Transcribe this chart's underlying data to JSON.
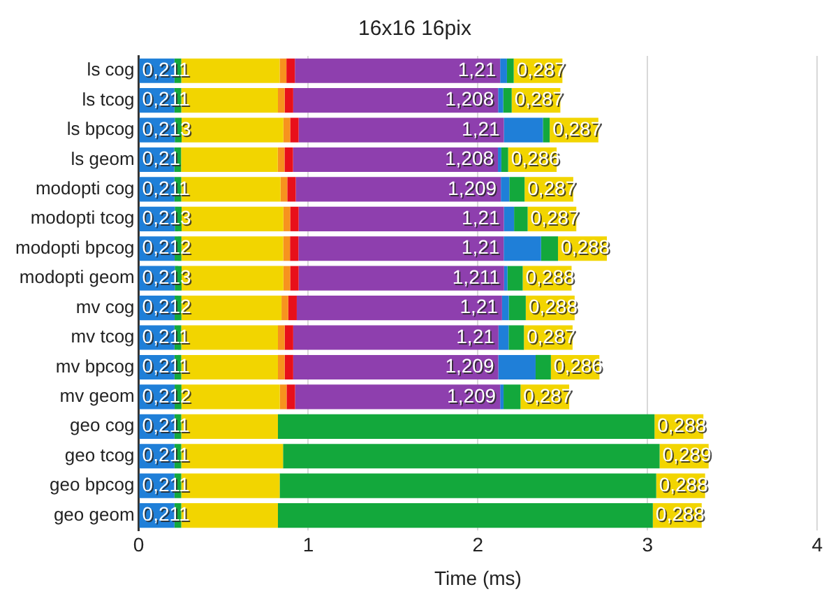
{
  "chart_data": {
    "type": "bar",
    "orientation": "horizontal",
    "stacked": true,
    "title": "16x16 16pix",
    "xlabel": "Time (ms)",
    "categories": [
      "ls cog",
      "ls tcog",
      "ls bpcog",
      "ls geom",
      "modopti cog",
      "modopti tcog",
      "modopti bpcog",
      "modopti geom",
      "mv cog",
      "mv tcog",
      "mv bpcog",
      "mv geom",
      "geo cog",
      "geo tcog",
      "geo bpcog",
      "geo geom"
    ],
    "xlim": [
      0,
      4
    ],
    "xticks": [
      0,
      1,
      2,
      3,
      4
    ],
    "grid": "x",
    "legend": false,
    "series": [
      {
        "color": "#1f7fd8",
        "values": [
          0.211,
          0.211,
          0.213,
          0.21,
          0.211,
          0.213,
          0.212,
          0.213,
          0.212,
          0.211,
          0.211,
          0.212,
          0.211,
          0.211,
          0.211,
          0.211
        ],
        "value_labels": [
          "0,211",
          "0,211",
          "0,213",
          "0,21",
          "0,211",
          "0,213",
          "0,212",
          "0,213",
          "0,212",
          "0,211",
          "0,211",
          "0,212",
          "0,211",
          "0,211",
          "0,211",
          "0,211"
        ]
      },
      {
        "color": "#13a83c",
        "values": [
          0.04,
          0.04,
          0.04,
          0.04,
          0.04,
          0.04,
          0.04,
          0.04,
          0.04,
          0.04,
          0.04,
          0.04,
          0.04,
          0.04,
          0.04,
          0.04
        ]
      },
      {
        "color": "#f2d500",
        "values": [
          0.58,
          0.57,
          0.6,
          0.57,
          0.585,
          0.6,
          0.6,
          0.6,
          0.59,
          0.57,
          0.57,
          0.58,
          0.57,
          0.6,
          0.58,
          0.57
        ]
      },
      {
        "color": "#f7931e",
        "values": [
          0.04,
          0.04,
          0.04,
          0.04,
          0.04,
          0.04,
          0.04,
          0.04,
          0.04,
          0.04,
          0.04,
          0.04,
          null,
          null,
          null,
          null
        ]
      },
      {
        "color": "#e8101a",
        "values": [
          0.05,
          0.05,
          0.05,
          0.05,
          0.05,
          0.05,
          0.05,
          0.05,
          0.05,
          0.05,
          0.05,
          0.05,
          null,
          null,
          null,
          null
        ]
      },
      {
        "color": "#8e3fae",
        "values": [
          1.21,
          1.208,
          1.21,
          1.208,
          1.209,
          1.21,
          1.21,
          1.211,
          1.21,
          1.21,
          1.209,
          1.209,
          null,
          null,
          null,
          null
        ],
        "value_labels": [
          "1,21",
          "1,208",
          "1,21",
          "1,208",
          "1,209",
          "1,21",
          "1,21",
          "1,211",
          "1,21",
          "1,21",
          "1,209",
          "1,209",
          null,
          null,
          null,
          null
        ]
      },
      {
        "color": "#1f7fd8",
        "values": [
          0.04,
          0.03,
          0.23,
          0.02,
          0.05,
          0.06,
          0.22,
          0.02,
          0.04,
          0.06,
          0.22,
          0.02,
          null,
          null,
          null,
          null
        ]
      },
      {
        "color": "#13a83c",
        "values": [
          0.04,
          0.05,
          0.04,
          0.04,
          0.09,
          0.08,
          0.1,
          0.09,
          0.1,
          0.09,
          0.09,
          0.1,
          2.22,
          2.22,
          2.22,
          2.21
        ]
      },
      {
        "color": "#f2d500",
        "values": [
          0.287,
          0.287,
          0.287,
          0.286,
          0.287,
          0.287,
          0.288,
          0.288,
          0.288,
          0.287,
          0.286,
          0.287,
          0.288,
          0.289,
          0.288,
          0.288
        ],
        "value_labels": [
          "0,287",
          "0,287",
          "0,287",
          "0,286",
          "0,287",
          "0,287",
          "0,288",
          "0,288",
          "0,288",
          "0,287",
          "0,286",
          "0,287",
          "0,288",
          "0,289",
          "0,288",
          "0,288"
        ]
      }
    ]
  }
}
